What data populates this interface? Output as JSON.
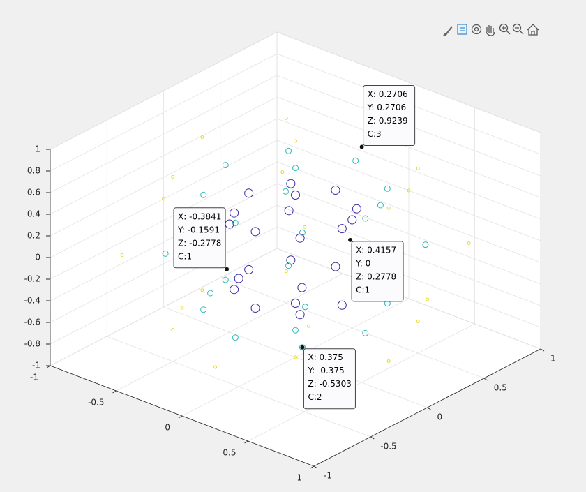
{
  "chart_data": {
    "type": "scatter3",
    "xlim": [
      -1,
      1
    ],
    "ylim": [
      -1,
      1
    ],
    "zlim": [
      -1,
      1
    ],
    "xticks": [
      -1,
      -0.5,
      0,
      0.5,
      1
    ],
    "yticks": [
      -1,
      -0.5,
      0,
      0.5,
      1
    ],
    "zticks": [
      -1,
      -0.8,
      -0.6,
      -0.4,
      -0.2,
      0,
      0.2,
      0.4,
      0.6,
      0.8,
      1
    ],
    "grid": true,
    "series": [
      {
        "color": "#e8d92a",
        "marker_size": 2,
        "x": [
          0.7071,
          0.5,
          0,
          -0.5,
          -0.7071,
          -0.5,
          0,
          0.5,
          1,
          0.7071,
          0,
          -0.7071,
          -1,
          -0.7071,
          0,
          0.7071,
          0.7071,
          0.5,
          0,
          -0.5,
          -0.7071,
          -0.5,
          0,
          0.5,
          0,
          0
        ],
        "y": [
          0,
          0.5,
          0.7071,
          0.5,
          0,
          -0.5,
          -0.7071,
          -0.5,
          0,
          0.7071,
          1,
          0.7071,
          0,
          -0.7071,
          -1,
          -0.7071,
          0,
          0.5,
          0.7071,
          0.5,
          0,
          -0.5,
          -0.7071,
          -0.5,
          0,
          0
        ],
        "z": [
          0.7071,
          0.7071,
          0.7071,
          0.7071,
          0.7071,
          0.7071,
          0.7071,
          0.7071,
          0,
          0,
          0,
          0,
          0,
          0,
          0,
          0,
          -0.7071,
          -0.7071,
          -0.7071,
          -0.7071,
          -0.7071,
          -0.7071,
          -0.7071,
          -0.7071,
          1,
          -1
        ]
      },
      {
        "color": "#2fb8b4",
        "marker_size": 4,
        "x": [
          0.5303,
          0.375,
          0,
          -0.375,
          -0.5303,
          -0.375,
          0,
          0.375,
          0.75,
          0.5303,
          0,
          -0.5303,
          -0.75,
          -0.5303,
          0,
          0.5303,
          0.5303,
          0.375,
          0,
          -0.375,
          -0.5303,
          -0.375,
          0,
          0.375,
          0,
          0
        ],
        "y": [
          0,
          0.375,
          0.5303,
          0.375,
          0,
          -0.375,
          -0.5303,
          -0.375,
          0,
          0.5303,
          0.75,
          0.5303,
          0,
          -0.5303,
          -0.75,
          -0.5303,
          0,
          0.375,
          0.5303,
          0.375,
          0,
          -0.375,
          -0.5303,
          -0.375,
          0,
          0
        ],
        "z": [
          0.5303,
          0.5303,
          0.5303,
          0.5303,
          0.5303,
          0.5303,
          0.5303,
          0.5303,
          0,
          0,
          0,
          0,
          0,
          0,
          0,
          0,
          -0.5303,
          -0.5303,
          -0.5303,
          -0.5303,
          -0.5303,
          -0.5303,
          -0.5303,
          -0.5303,
          0.75,
          -0.75
        ]
      },
      {
        "color": "#3b2aa0",
        "marker_size": 6,
        "x": [
          0.3536,
          0.25,
          0,
          -0.25,
          -0.3536,
          -0.25,
          0,
          0.25,
          0.5,
          0.3536,
          0,
          -0.3536,
          -0.5,
          -0.3536,
          0,
          0.3536,
          0.3536,
          0.25,
          0,
          -0.25,
          -0.3536,
          -0.25,
          0,
          0.25,
          0,
          0
        ],
        "y": [
          0,
          0.25,
          0.3536,
          0.25,
          0,
          -0.25,
          -0.3536,
          -0.25,
          0,
          0.3536,
          0.5,
          0.3536,
          0,
          -0.3536,
          -0.5,
          -0.3536,
          0,
          0.25,
          0.3536,
          0.25,
          0,
          -0.25,
          -0.3536,
          -0.25,
          0,
          0
        ],
        "z": [
          0.3536,
          0.3536,
          0.3536,
          0.3536,
          0.3536,
          0.3536,
          0.3536,
          0.3536,
          0,
          0,
          0,
          0,
          0,
          0,
          0,
          0,
          -0.3536,
          -0.3536,
          -0.3536,
          -0.3536,
          -0.3536,
          -0.3536,
          -0.3536,
          -0.3536,
          0.5,
          -0.5
        ]
      }
    ],
    "datatips": [
      {
        "x": 0.2706,
        "y": 0.2706,
        "z": 0.9239,
        "labels": [
          "X: 0.2706",
          "Y: 0.2706",
          "Z: 0.9239",
          "C:3"
        ]
      },
      {
        "x": -0.3841,
        "y": -0.1591,
        "z": -0.2778,
        "labels": [
          "X: -0.3841",
          "Y: -0.1591",
          "Z: -0.2778",
          "C:1"
        ]
      },
      {
        "x": 0.4157,
        "y": 0,
        "z": 0.2778,
        "labels": [
          "X: 0.4157",
          "Y: 0",
          "Z: 0.2778",
          "C:1"
        ]
      },
      {
        "x": 0.375,
        "y": -0.375,
        "z": -0.5303,
        "labels": [
          "X: 0.375",
          "Y: -0.375",
          "Z: -0.5303",
          "C:2"
        ]
      }
    ]
  }
}
